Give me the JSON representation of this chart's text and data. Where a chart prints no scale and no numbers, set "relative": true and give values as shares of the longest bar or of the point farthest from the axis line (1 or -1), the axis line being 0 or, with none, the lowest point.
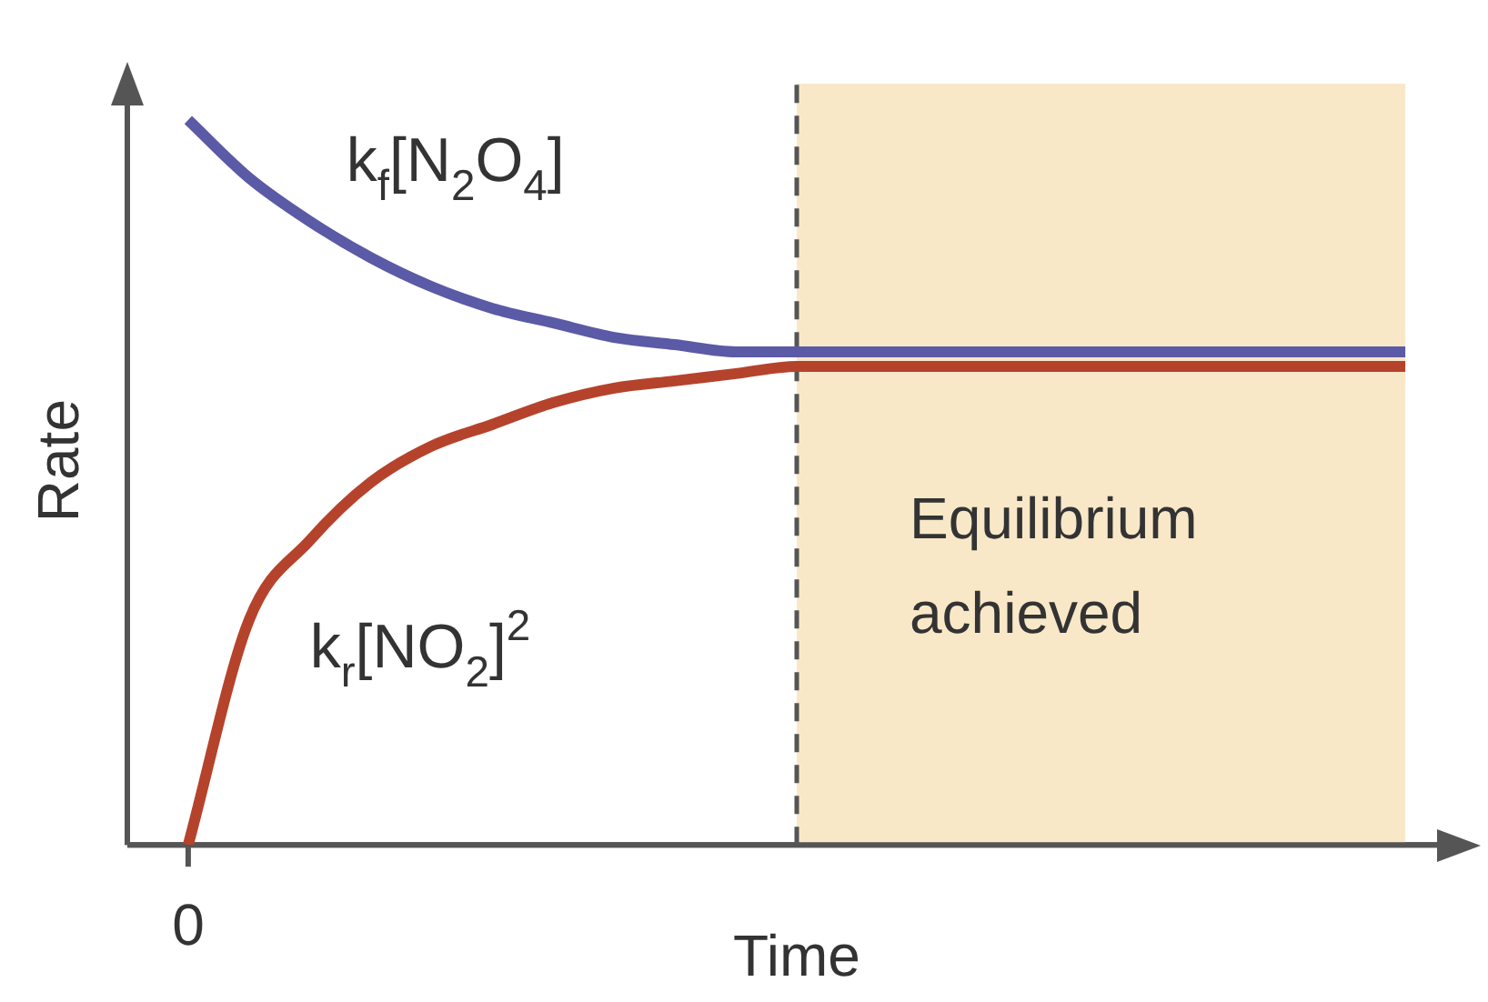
{
  "chart_data": {
    "type": "line",
    "relative": true,
    "xlabel": "Time",
    "ylabel": "Rate",
    "legend": false,
    "marker": "none",
    "line_style": "solid",
    "annotations": [
      "0",
      "Equilibrium achieved"
    ],
    "categories": [
      null,
      null,
      null,
      null,
      null,
      null,
      null,
      null,
      null,
      null,
      null,
      null,
      null,
      null,
      null,
      null,
      null,
      null,
      null,
      null,
      null
    ],
    "series": [
      {
        "name": "k$_{f}$[N$_{2}$O$_{4}$]",
        "color": "#5b5aa6",
        "values": [
          1,
          0.92,
          0.86,
          0.81,
          0.77,
          0.74,
          0.72,
          0.7,
          0.69,
          0.68,
          0.68,
          0.68,
          0.68,
          0.68,
          0.68,
          0.68,
          0.68,
          0.68,
          0.68,
          0.68,
          0.68
        ]
      },
      {
        "name": "k$_{r}$[NO$_{2}$]$^{2}$",
        "color": "#b5432c",
        "values": [
          0,
          0.31,
          0.42,
          0.5,
          0.55,
          0.58,
          0.61,
          0.63,
          0.64,
          0.65,
          0.66,
          0.66,
          0.66,
          0.66,
          0.66,
          0.66,
          0.66,
          0.66,
          0.66,
          0.66,
          0.66
        ]
      }
    ]
  }
}
